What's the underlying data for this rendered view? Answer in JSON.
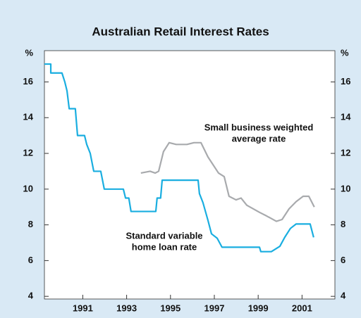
{
  "chart_data": {
    "type": "line",
    "title": "Australian Retail Interest Rates",
    "y_unit_left": "%",
    "y_unit_right": "%",
    "xlim": [
      1989.25,
      2002.5
    ],
    "xticks": [
      1991,
      1993,
      1995,
      1997,
      1999,
      2001
    ],
    "ylim": [
      3.85,
      17.75
    ],
    "yticks": [
      4,
      6,
      8,
      10,
      12,
      14,
      16
    ],
    "annotations": [
      {
        "lines": [
          "Small business weighted",
          "average rate"
        ]
      },
      {
        "lines": [
          "Standard variable",
          "home loan rate"
        ]
      }
    ],
    "series": [
      {
        "color": "#1aaee0",
        "x": [
          1989.25,
          1989.54,
          1989.54,
          1990.05,
          1990.18,
          1990.28,
          1990.38,
          1990.66,
          1990.76,
          1991.08,
          1991.18,
          1991.34,
          1991.5,
          1991.82,
          1991.98,
          1992.85,
          1992.95,
          1993.1,
          1993.2,
          1994.33,
          1994.39,
          1994.55,
          1994.62,
          1996.26,
          1996.32,
          1996.48,
          1996.71,
          1996.87,
          1997.13,
          1997.35,
          1999.06,
          1999.12,
          1999.6,
          1999.99,
          2000.21,
          2000.47,
          2000.73,
          2001.37,
          2001.53
        ],
        "values": [
          17,
          17,
          16.5,
          16.5,
          16,
          15.5,
          14.5,
          14.5,
          13,
          13,
          12.5,
          12,
          11,
          11,
          10,
          10,
          9.5,
          9.5,
          8.75,
          8.75,
          9.5,
          9.5,
          10.5,
          10.5,
          9.75,
          9.25,
          8.25,
          7.5,
          7.25,
          6.75,
          6.75,
          6.5,
          6.5,
          6.8,
          7.3,
          7.8,
          8.05,
          8.05,
          7.3
        ]
      },
      {
        "color": "#a8aaad",
        "x": [
          1993.65,
          1994.07,
          1994.3,
          1994.46,
          1994.68,
          1994.94,
          1995.26,
          1995.75,
          1996.07,
          1996.39,
          1996.71,
          1997.19,
          1997.45,
          1997.67,
          1997.99,
          1998.22,
          1998.48,
          1999.06,
          1999.38,
          1999.83,
          2000.09,
          2000.41,
          2000.73,
          2001.05,
          2001.31,
          2001.56
        ],
        "values": [
          10.9,
          11.0,
          10.9,
          11.0,
          12.1,
          12.6,
          12.5,
          12.5,
          12.6,
          12.6,
          11.8,
          10.9,
          10.7,
          9.6,
          9.4,
          9.5,
          9.1,
          8.7,
          8.5,
          8.2,
          8.3,
          8.9,
          9.3,
          9.6,
          9.6,
          9.0
        ]
      }
    ]
  }
}
